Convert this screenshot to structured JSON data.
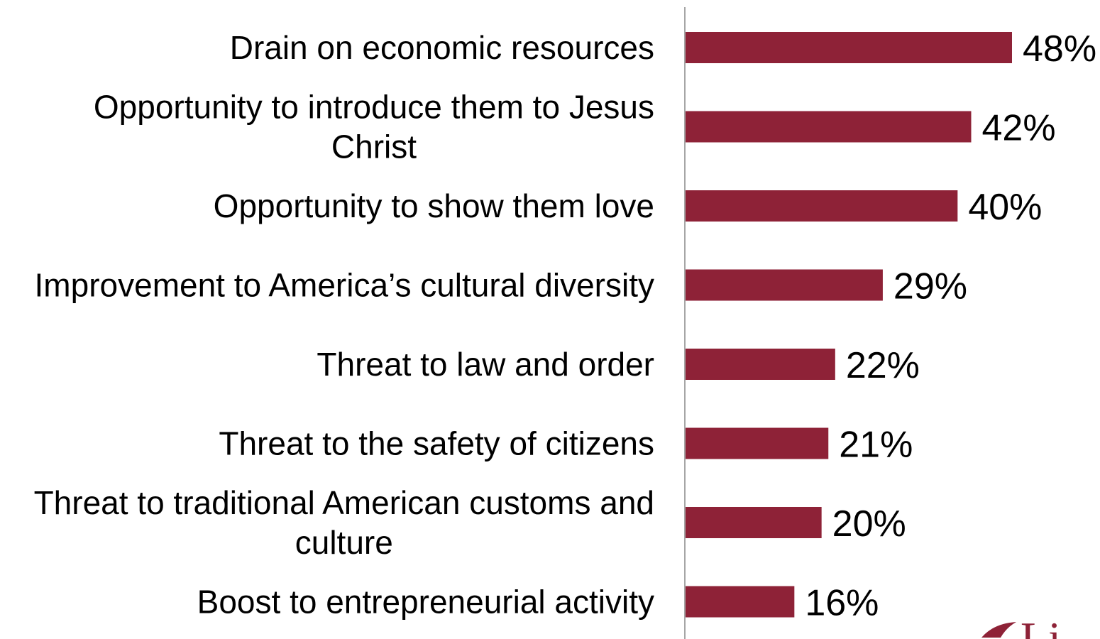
{
  "chart_data": {
    "type": "bar",
    "orientation": "horizontal",
    "categories": [
      [
        "Drain on economic resources"
      ],
      [
        "Opportunity to introduce them to Jesus",
        "Christ"
      ],
      [
        "Opportunity to show them love"
      ],
      [
        "Improvement to America’s cultural diversity"
      ],
      [
        "Threat to law and order"
      ],
      [
        "Threat to the safety of citizens"
      ],
      [
        "Threat to traditional American customs and",
        "culture"
      ],
      [
        "Boost to entrepreneurial activity"
      ]
    ],
    "values": [
      48,
      42,
      40,
      29,
      22,
      21,
      20,
      16
    ],
    "value_labels": [
      "48%",
      "42%",
      "40%",
      "29%",
      "22%",
      "21%",
      "20%",
      "16%"
    ],
    "xlim": [
      0,
      50
    ],
    "bar_color": "#8E2237",
    "axis_color": "#A6A6A6",
    "title": "",
    "xlabel": "",
    "ylabel": "",
    "grid": false,
    "legend": "none"
  },
  "logo": {
    "text": "Li",
    "color": "#8E2237"
  }
}
